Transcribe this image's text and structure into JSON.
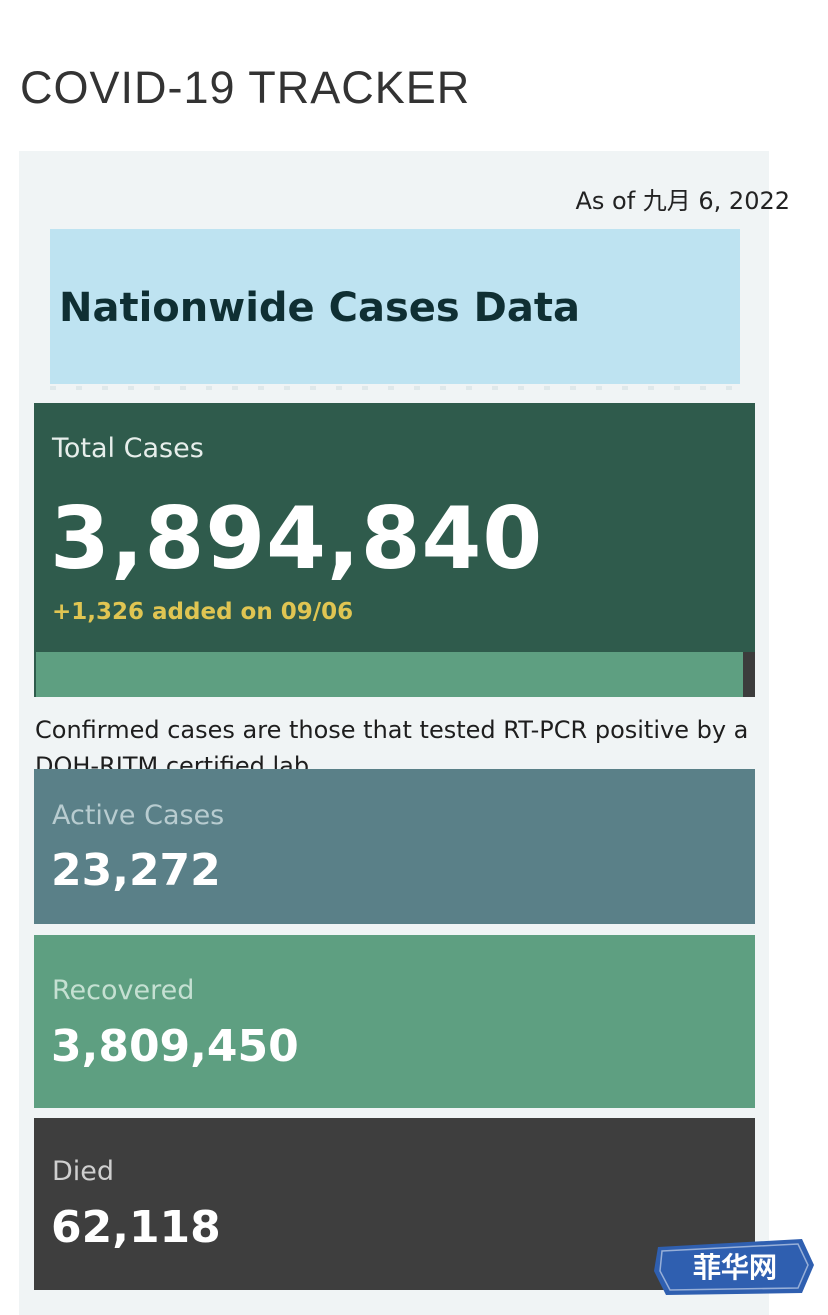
{
  "page": {
    "title": "COVID-19 TRACKER"
  },
  "dashboard": {
    "as_of": "As of 九月 6, 2022",
    "headline": "Nationwide Cases Data",
    "total": {
      "label": "Total Cases",
      "value": "3,894,840",
      "added": "+1,326 added on 09/06"
    },
    "note": "Confirmed cases are those that tested RT-PCR positive by a DOH-RITM certified lab",
    "active": {
      "label": "Active Cases",
      "value": "23,272"
    },
    "recovered": {
      "label": "Recovered",
      "value": "3,809,450"
    },
    "died": {
      "label": "Died",
      "value": "62,118"
    }
  },
  "watermark": {
    "text": "菲华网"
  },
  "colors": {
    "headline_bg": "#bee3f1",
    "total_bg": "#2f5b4c",
    "added_text": "#e0c552",
    "active_bg": "#5a8088",
    "recovered_bg": "#5e9f81",
    "died_bg": "#3e3e3e",
    "watermark_bg": "#2f5fb0"
  }
}
